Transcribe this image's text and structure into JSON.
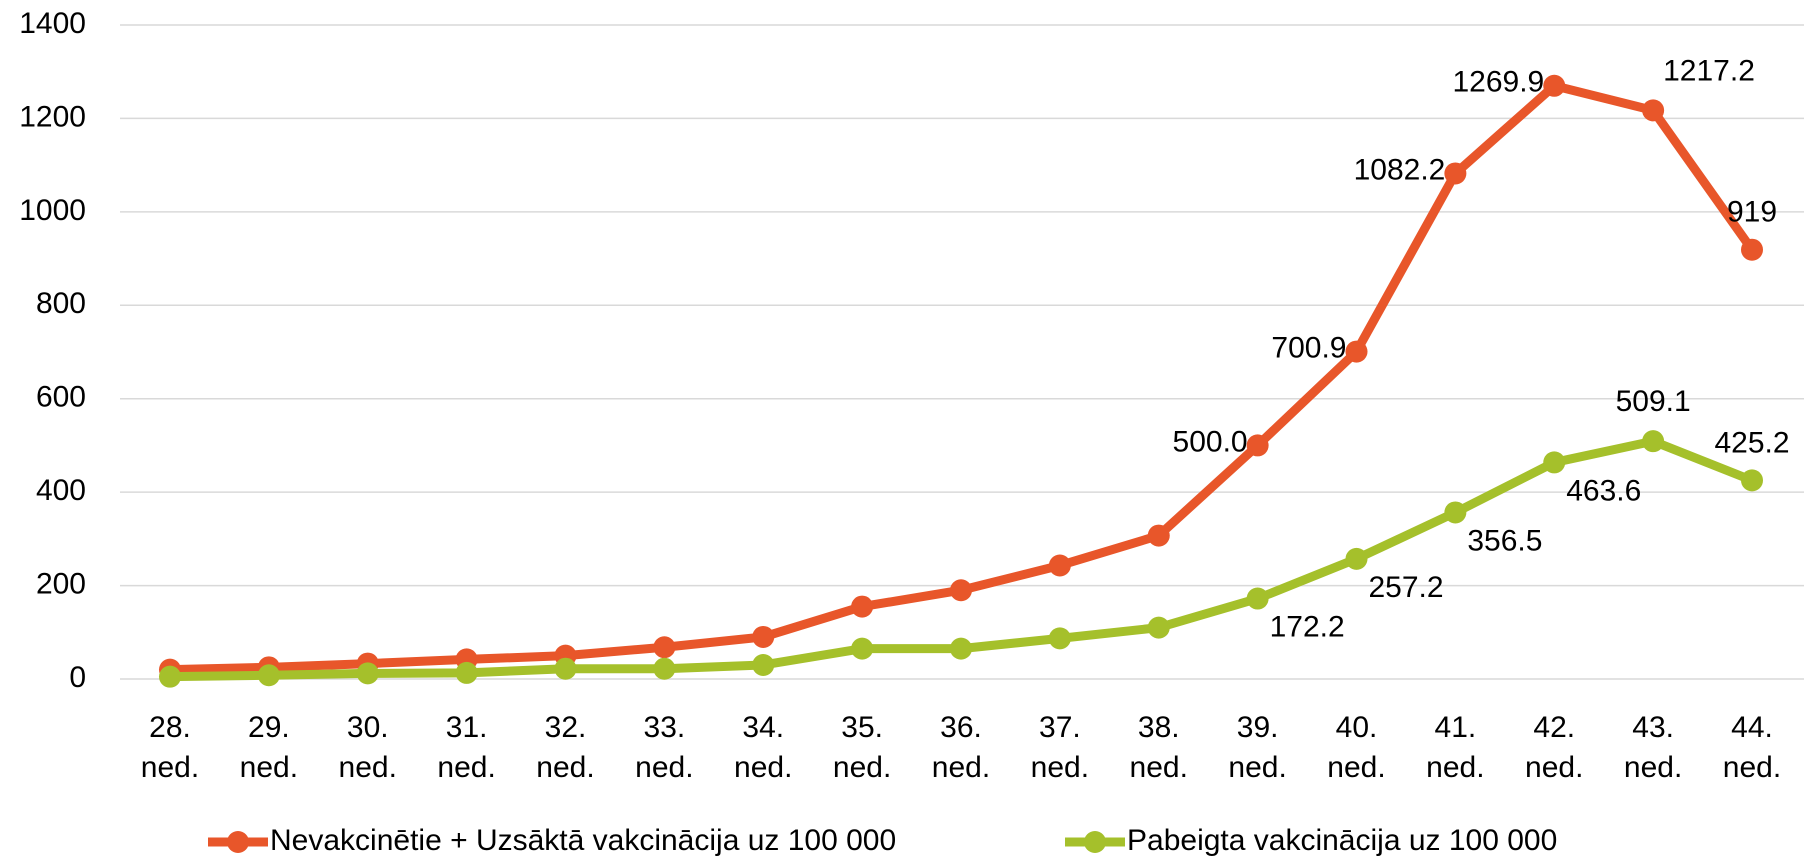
{
  "chart_data": {
    "type": "line",
    "categories": [
      "28. ned.",
      "29. ned.",
      "30. ned.",
      "31. ned.",
      "32. ned.",
      "33. ned.",
      "34. ned.",
      "35. ned.",
      "36. ned.",
      "37. ned.",
      "38. ned.",
      "39. ned.",
      "40. ned.",
      "41. ned.",
      "42. ned.",
      "43. ned.",
      "44. ned."
    ],
    "series": [
      {
        "name": "Nevakcinētie +  Uzsāktā vakcinācija uz 100 000",
        "color": "#e8562a",
        "values": [
          20,
          25,
          33,
          42,
          50,
          68,
          90,
          155,
          190,
          243,
          307,
          500.0,
          700.9,
          1082.2,
          1269.9,
          1217.2,
          919
        ],
        "value_labels": [
          null,
          null,
          null,
          null,
          null,
          null,
          null,
          null,
          null,
          null,
          null,
          "500.0",
          "700.9",
          "1082.2",
          "1269.9",
          "1217.2",
          "919"
        ]
      },
      {
        "name": "Pabeigta vakcinācija uz 100 000",
        "color": "#a5c02b",
        "values": [
          5,
          8,
          12,
          13,
          22,
          22,
          30,
          65,
          65,
          87,
          110,
          172.2,
          257.2,
          356.5,
          463.6,
          509.1,
          425.2
        ],
        "value_labels": [
          null,
          null,
          null,
          null,
          null,
          null,
          null,
          null,
          null,
          null,
          null,
          "172.2",
          "257.2",
          "356.5",
          "463.6",
          "509.1",
          "425.2"
        ]
      }
    ],
    "ylim": [
      0,
      1400
    ],
    "yticks": [
      0,
      200,
      400,
      600,
      800,
      1000,
      1200,
      1400
    ],
    "grid": true,
    "legend": "bottom"
  }
}
